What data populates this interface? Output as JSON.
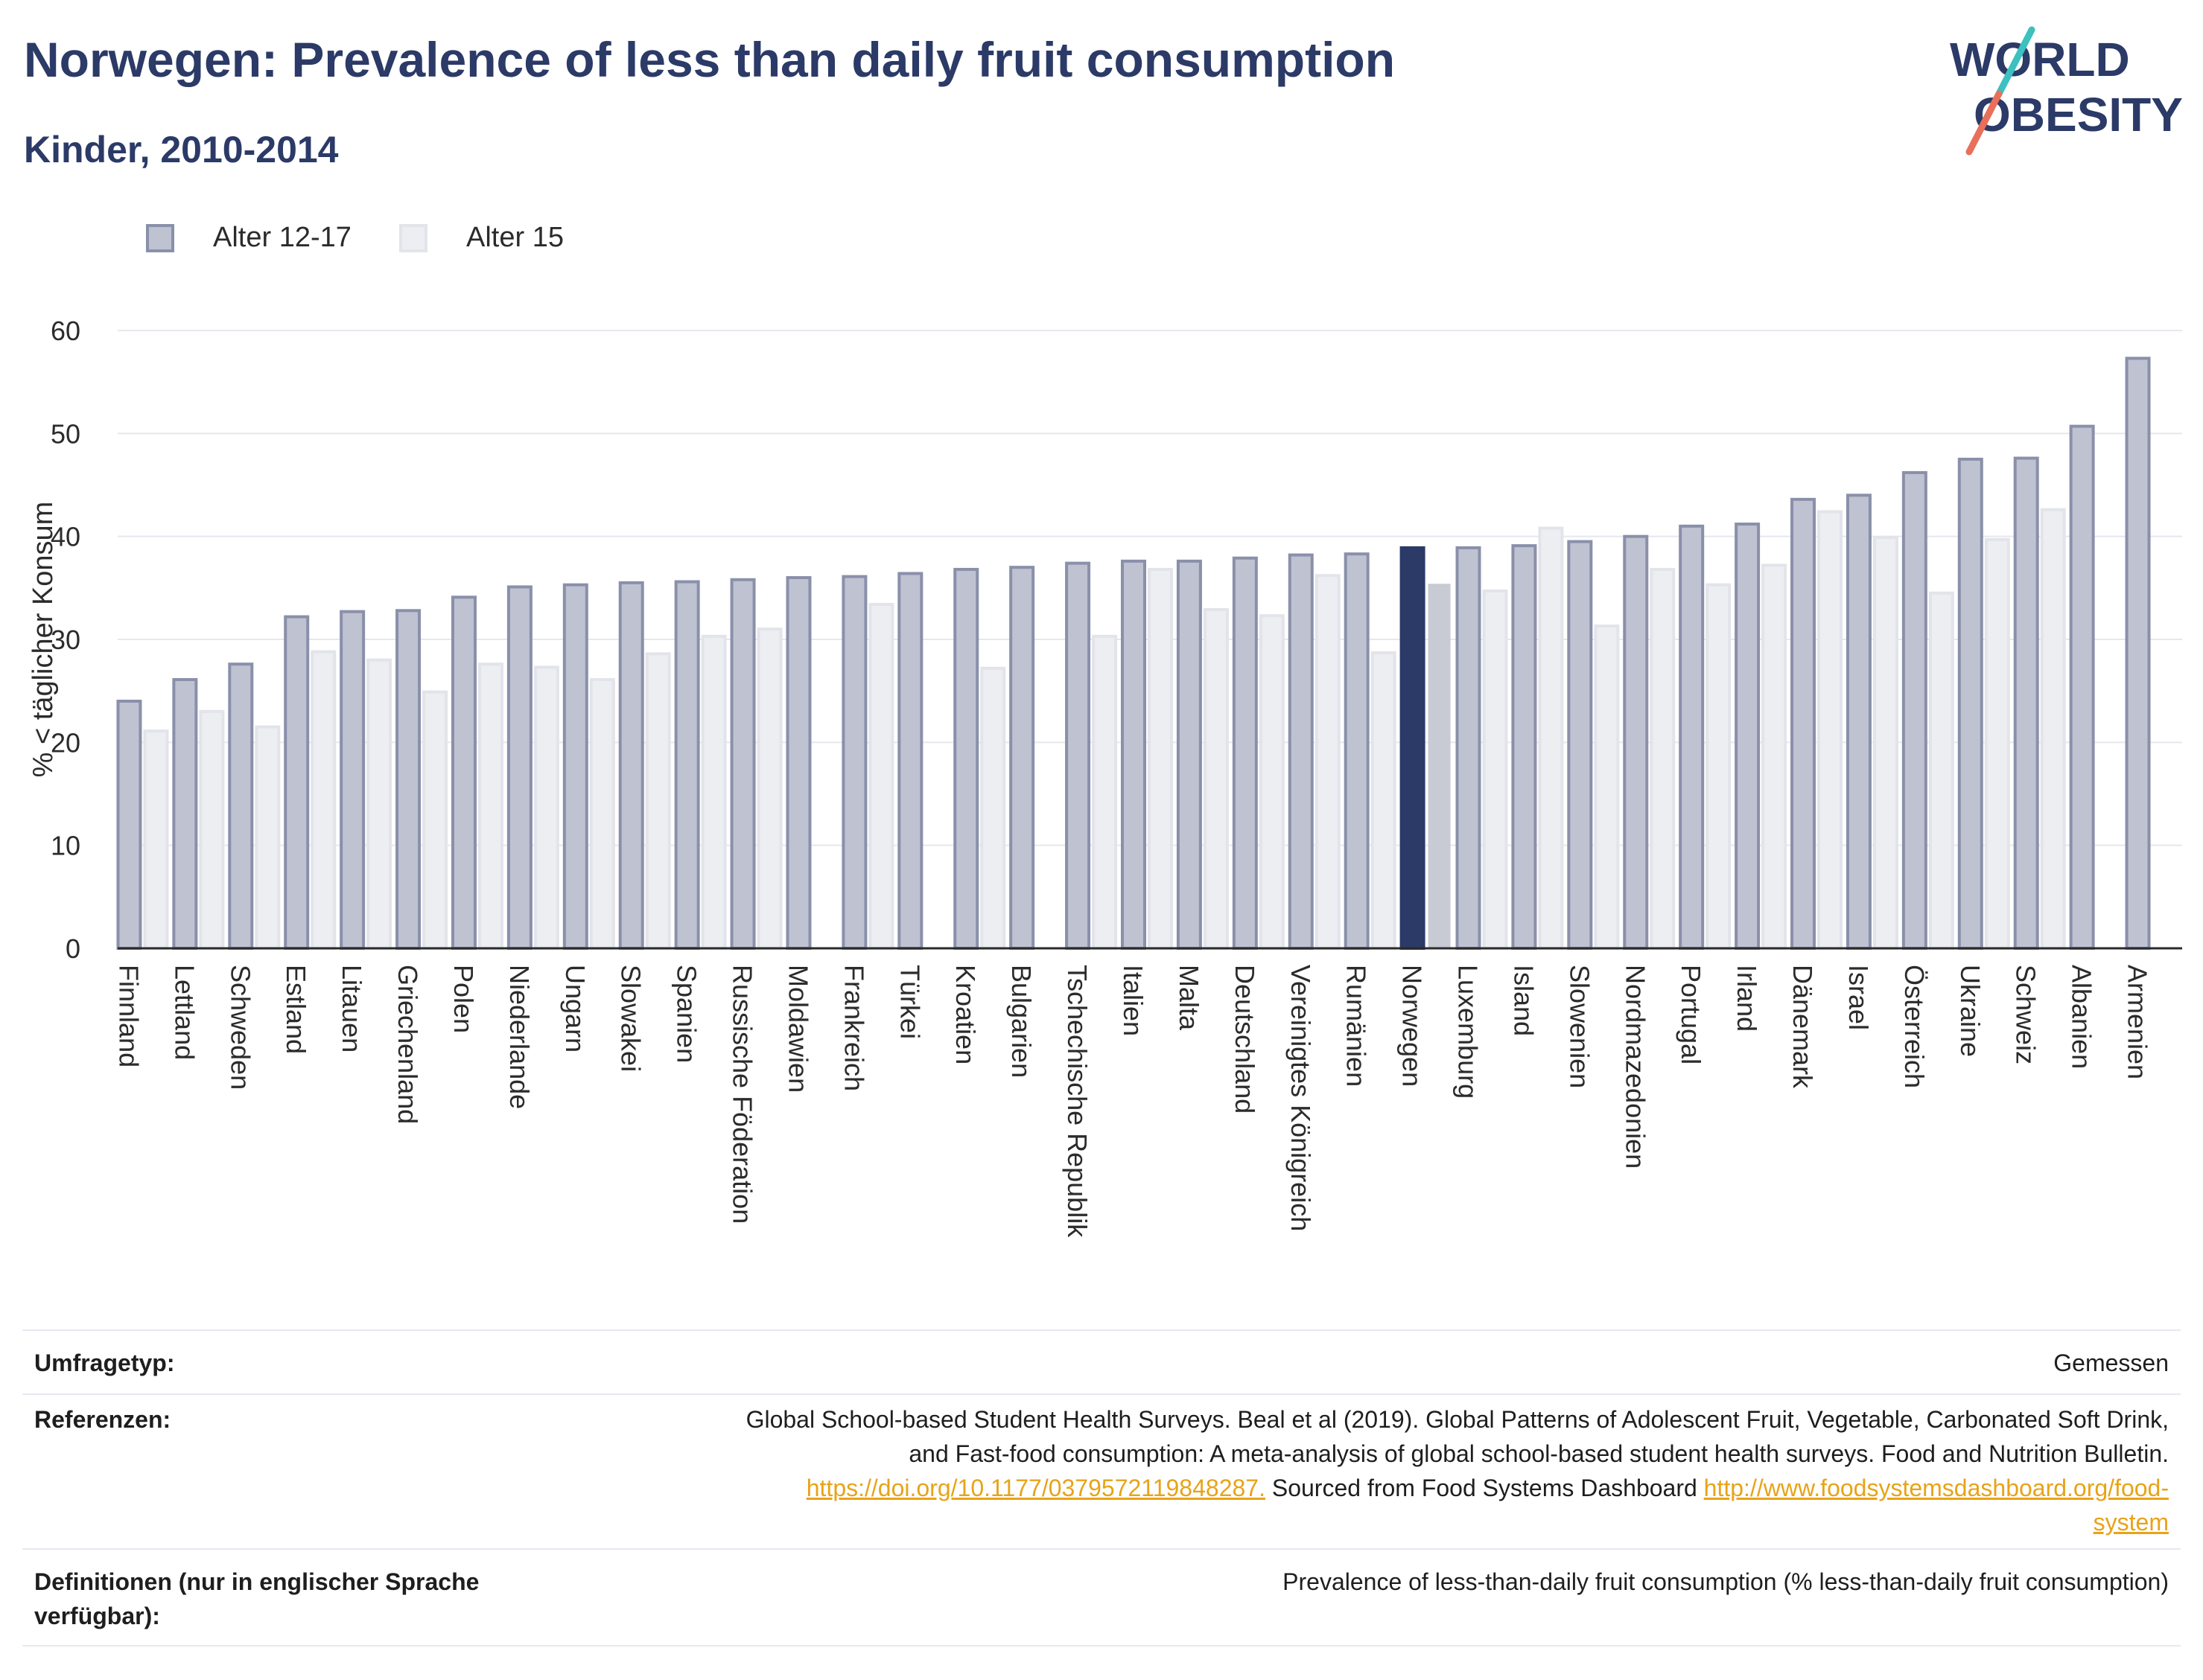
{
  "header": {
    "title": "Norwegen: Prevalence of less than daily fruit consumption",
    "subtitle": "Kinder, 2010-2014"
  },
  "logo": {
    "line1": "WORLD",
    "line2": "OBESITY"
  },
  "legend": [
    {
      "label": "Alter 12-17",
      "color": "#bfc2d0",
      "border": "#8a90aa"
    },
    {
      "label": "Alter 15",
      "color": "#eceef2",
      "border": "#e2e4ea"
    }
  ],
  "chart_data": {
    "type": "bar",
    "ylabel": "% < täglicher Konsum",
    "ylim": [
      0,
      60
    ],
    "yticks": [
      0,
      10,
      20,
      30,
      40,
      50,
      60
    ],
    "highlight": "Norwegen",
    "highlight_colors": {
      "Alter 12-17": "#2b3a67",
      "Alter 15": "#c8cad4"
    },
    "categories": [
      "Finnland",
      "Lettland",
      "Schweden",
      "Estland",
      "Litauen",
      "Griechenland",
      "Polen",
      "Niederlande",
      "Ungarn",
      "Slowakei",
      "Spanien",
      "Russische Föderation",
      "Moldawien",
      "Frankreich",
      "Türkei",
      "Kroatien",
      "Bulgarien",
      "Tschechische Republik",
      "Italien",
      "Malta",
      "Deutschland",
      "Vereinigtes Königreich",
      "Rumänien",
      "Norwegen",
      "Luxemburg",
      "Island",
      "Slowenien",
      "Nordmazedonien",
      "Portugal",
      "Irland",
      "Dänemark",
      "Israel",
      "Österreich",
      "Ukraine",
      "Schweiz",
      "Albanien",
      "Armenien"
    ],
    "series": [
      {
        "name": "Alter 12-17",
        "values": [
          24.0,
          26.1,
          27.6,
          32.2,
          32.7,
          32.8,
          34.1,
          35.1,
          35.3,
          35.5,
          35.6,
          35.8,
          36.0,
          36.1,
          36.4,
          36.8,
          37.0,
          37.4,
          37.6,
          37.6,
          37.9,
          38.2,
          38.3,
          38.9,
          38.9,
          39.1,
          39.5,
          40.0,
          41.0,
          41.2,
          43.6,
          44.0,
          46.2,
          47.5,
          47.6,
          50.7,
          57.3
        ]
      },
      {
        "name": "Alter 15",
        "values": [
          21.1,
          23.0,
          21.5,
          28.8,
          28.0,
          24.9,
          27.6,
          27.3,
          26.1,
          28.6,
          30.3,
          31.0,
          null,
          33.4,
          null,
          27.2,
          null,
          30.3,
          36.8,
          32.9,
          32.3,
          36.2,
          28.7,
          35.4,
          34.7,
          40.8,
          31.3,
          36.8,
          35.3,
          37.2,
          42.4,
          39.9,
          34.5,
          39.7,
          42.6,
          null,
          null
        ]
      }
    ]
  },
  "info": {
    "survey_type_label": "Umfragetyp:",
    "survey_type_value": "Gemessen",
    "references_label": "Referenzen:",
    "references_line1": "Global School-based Student Health Surveys. Beal et al (2019). Global Patterns of Adolescent Fruit, Vegetable, Carbonated Soft Drink,",
    "references_line2": "and Fast-food consumption: A meta-analysis of global school-based student health surveys. Food and Nutrition Bulletin.",
    "references_link1": "https://doi.org/10.1177/0379572119848287.",
    "references_mid": " Sourced from Food Systems Dashboard ",
    "references_link2a": "http://www.foodsystemsdashboard.org/food-",
    "references_link2b": "system",
    "definitions_label": "Definitionen (nur in englischer Sprache verfügbar):",
    "definitions_value": "Prevalence of less-than-daily fruit consumption (% less-than-daily fruit consumption)"
  }
}
